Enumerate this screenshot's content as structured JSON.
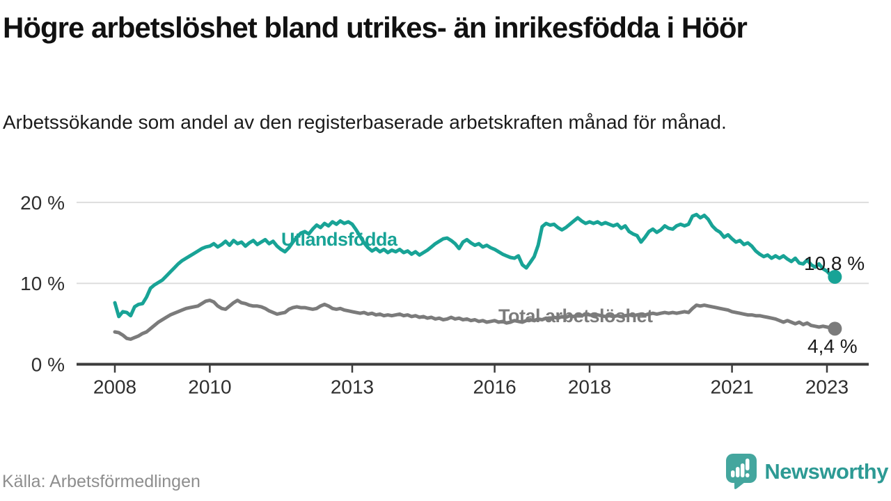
{
  "header": {
    "title": "Högre arbetslöshet bland utrikes- än inrikesfödda i Höör",
    "subtitle": "Arbetssökande som andel av den registerbaserade arbetskraften månad för månad."
  },
  "footer": {
    "source": "Källa: Arbetsförmedlingen",
    "brand": "Newsworthy",
    "brand_color": "#2d9a94",
    "logo_color": "#44a69e"
  },
  "chart_data": {
    "type": "line",
    "title": "Högre arbetslöshet bland utrikes- än inrikesfödda i Höör",
    "unit": "%",
    "frequency": "monthly",
    "start": "2008-01",
    "end": "2023-03",
    "grid": "horizontal",
    "legend_position": "inline-labels",
    "ylim": [
      0,
      22
    ],
    "y_ticks": [
      {
        "v": 0,
        "label": "0 %"
      },
      {
        "v": 10,
        "label": "10 %"
      },
      {
        "v": 20,
        "label": "20 %"
      }
    ],
    "x_ticks": [
      {
        "t": 2008,
        "label": "2008"
      },
      {
        "t": 2010,
        "label": "2010"
      },
      {
        "t": 2013,
        "label": "2013"
      },
      {
        "t": 2016,
        "label": "2016"
      },
      {
        "t": 2018,
        "label": "2018"
      },
      {
        "t": 2021,
        "label": "2021"
      },
      {
        "t": 2023,
        "label": "2023"
      }
    ],
    "axis_color": "#3c3c3c",
    "gridline_color": "#dddddd",
    "tick_label_color": "#2f2f2f",
    "annotation_color": "#1a1a1a",
    "series": [
      {
        "name": "Utlandsfödda",
        "color": "#18a396",
        "end_label": "10,8 %",
        "last_value": 10.8,
        "values": [
          7.6,
          5.9,
          6.5,
          6.4,
          6.0,
          7.1,
          7.4,
          7.5,
          8.3,
          9.4,
          9.8,
          10.1,
          10.4,
          10.9,
          11.4,
          11.9,
          12.4,
          12.8,
          13.1,
          13.4,
          13.7,
          14.0,
          14.3,
          14.5,
          14.6,
          14.9,
          14.5,
          14.8,
          15.2,
          14.7,
          15.3,
          14.9,
          15.1,
          14.6,
          15.0,
          15.3,
          14.8,
          15.1,
          15.4,
          14.9,
          15.2,
          14.6,
          14.2,
          13.9,
          14.4,
          15.1,
          15.7,
          16.2,
          16.4,
          16.1,
          16.7,
          17.2,
          16.9,
          17.4,
          17.1,
          17.6,
          17.3,
          17.7,
          17.4,
          17.6,
          17.3,
          16.6,
          15.8,
          15.0,
          14.4,
          14.0,
          14.3,
          13.9,
          14.2,
          13.8,
          14.1,
          13.9,
          14.2,
          13.8,
          14.0,
          13.6,
          13.9,
          13.5,
          13.8,
          14.1,
          14.5,
          14.9,
          15.2,
          15.5,
          15.6,
          15.3,
          14.9,
          14.3,
          15.1,
          15.4,
          15.0,
          14.7,
          14.9,
          14.5,
          14.7,
          14.4,
          14.2,
          13.9,
          13.6,
          13.4,
          13.2,
          13.1,
          13.4,
          12.3,
          11.9,
          12.6,
          13.3,
          14.7,
          17.0,
          17.4,
          17.2,
          17.3,
          16.9,
          16.6,
          16.9,
          17.3,
          17.7,
          18.1,
          17.7,
          17.4,
          17.6,
          17.4,
          17.6,
          17.3,
          17.5,
          17.3,
          17.1,
          17.3,
          16.8,
          17.1,
          16.4,
          16.1,
          15.9,
          15.1,
          15.7,
          16.4,
          16.7,
          16.3,
          16.6,
          17.1,
          16.8,
          16.7,
          17.1,
          17.3,
          17.1,
          17.3,
          18.3,
          18.5,
          18.1,
          18.4,
          17.9,
          17.1,
          16.6,
          16.3,
          15.7,
          16.0,
          15.5,
          15.1,
          15.3,
          14.8,
          15.0,
          14.6,
          14.0,
          13.6,
          13.3,
          13.5,
          13.1,
          13.4,
          13.1,
          13.4,
          13.0,
          12.7,
          13.1,
          12.5,
          12.4,
          12.9,
          12.3,
          12.0,
          12.4,
          11.8,
          11.5,
          11.0,
          10.8
        ]
      },
      {
        "name": "Total arbetslöshet",
        "color": "#7b7b7b",
        "end_label": "4,4 %",
        "last_value": 4.4,
        "values": [
          4.0,
          3.9,
          3.6,
          3.2,
          3.1,
          3.3,
          3.5,
          3.8,
          4.0,
          4.4,
          4.8,
          5.2,
          5.5,
          5.8,
          6.1,
          6.3,
          6.5,
          6.7,
          6.9,
          7.0,
          7.1,
          7.2,
          7.5,
          7.8,
          7.9,
          7.7,
          7.2,
          6.9,
          6.8,
          7.2,
          7.6,
          7.9,
          7.6,
          7.5,
          7.3,
          7.2,
          7.2,
          7.1,
          6.9,
          6.6,
          6.4,
          6.2,
          6.3,
          6.4,
          6.8,
          7.0,
          7.1,
          7.0,
          7.0,
          6.9,
          6.8,
          6.9,
          7.2,
          7.4,
          7.2,
          6.9,
          6.8,
          6.9,
          6.7,
          6.6,
          6.5,
          6.4,
          6.3,
          6.4,
          6.2,
          6.3,
          6.1,
          6.2,
          6.0,
          6.1,
          6.0,
          6.1,
          6.2,
          6.0,
          6.1,
          5.9,
          6.0,
          5.8,
          5.9,
          5.7,
          5.8,
          5.6,
          5.7,
          5.5,
          5.6,
          5.8,
          5.6,
          5.7,
          5.5,
          5.6,
          5.4,
          5.5,
          5.3,
          5.4,
          5.2,
          5.3,
          5.4,
          5.2,
          5.3,
          5.1,
          5.2,
          5.4,
          5.3,
          5.2,
          5.4,
          5.5,
          5.4,
          5.6,
          5.5,
          5.7,
          5.6,
          5.8,
          5.7,
          5.9,
          5.8,
          6.0,
          5.9,
          6.1,
          6.0,
          6.2,
          6.1,
          6.0,
          6.1,
          6.0,
          5.9,
          6.0,
          5.9,
          6.0,
          5.9,
          6.0,
          6.1,
          6.0,
          6.1,
          6.2,
          6.1,
          6.2,
          6.3,
          6.2,
          6.3,
          6.4,
          6.3,
          6.4,
          6.3,
          6.4,
          6.5,
          6.4,
          6.9,
          7.3,
          7.2,
          7.3,
          7.2,
          7.1,
          7.0,
          6.9,
          6.8,
          6.7,
          6.5,
          6.4,
          6.3,
          6.2,
          6.1,
          6.1,
          6.0,
          6.0,
          5.9,
          5.8,
          5.7,
          5.6,
          5.4,
          5.2,
          5.4,
          5.2,
          5.0,
          5.2,
          4.9,
          5.1,
          4.8,
          4.7,
          4.6,
          4.7,
          4.6,
          4.5,
          4.4
        ]
      }
    ]
  }
}
